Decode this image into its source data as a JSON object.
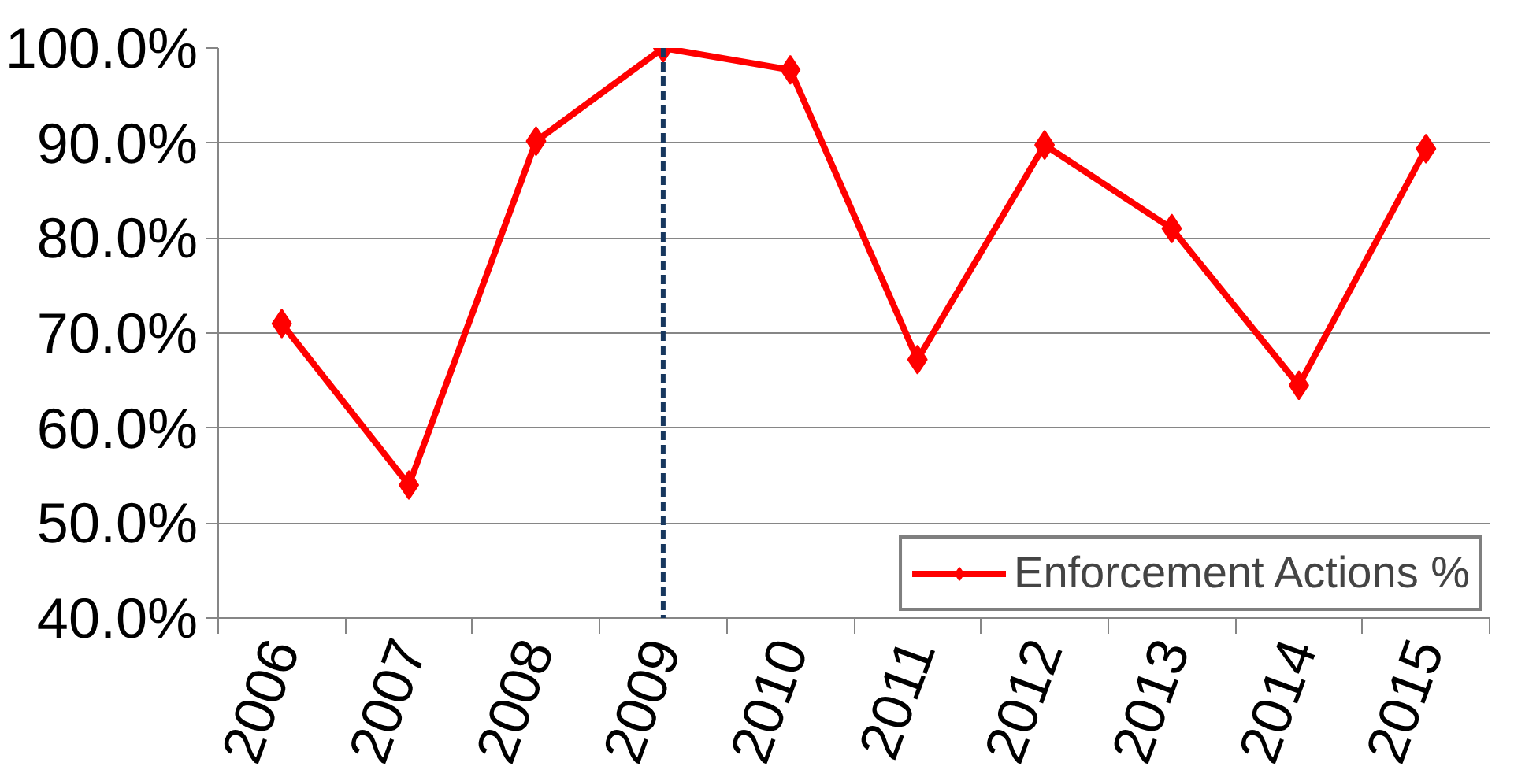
{
  "chart_data": {
    "type": "line",
    "categories": [
      "2006",
      "2007",
      "2008",
      "2009",
      "2010",
      "2011",
      "2012",
      "2013",
      "2014",
      "2015"
    ],
    "series": [
      {
        "name": "Enforcement Actions %",
        "color": "#ff0000",
        "values": [
          71.0,
          54.0,
          90.2,
          100.0,
          97.7,
          67.2,
          89.8,
          81.0,
          64.5,
          89.4
        ]
      }
    ],
    "ylim": [
      40,
      100
    ],
    "yticks": [
      {
        "value": 40,
        "label": "40.0%"
      },
      {
        "value": 50,
        "label": "50.0%"
      },
      {
        "value": 60,
        "label": "60.0%"
      },
      {
        "value": 70,
        "label": "70.0%"
      },
      {
        "value": 80,
        "label": "80.0%"
      },
      {
        "value": 90,
        "label": "90.0%"
      },
      {
        "value": 100,
        "label": "100.0%"
      }
    ],
    "ref_lines": [
      {
        "axis": "x",
        "value": "2009",
        "label": null,
        "color": "#17375e",
        "line_style": "dashed"
      }
    ],
    "grid": "y",
    "legend": "bottom right",
    "marker": "diamond",
    "line_style": "solid"
  }
}
